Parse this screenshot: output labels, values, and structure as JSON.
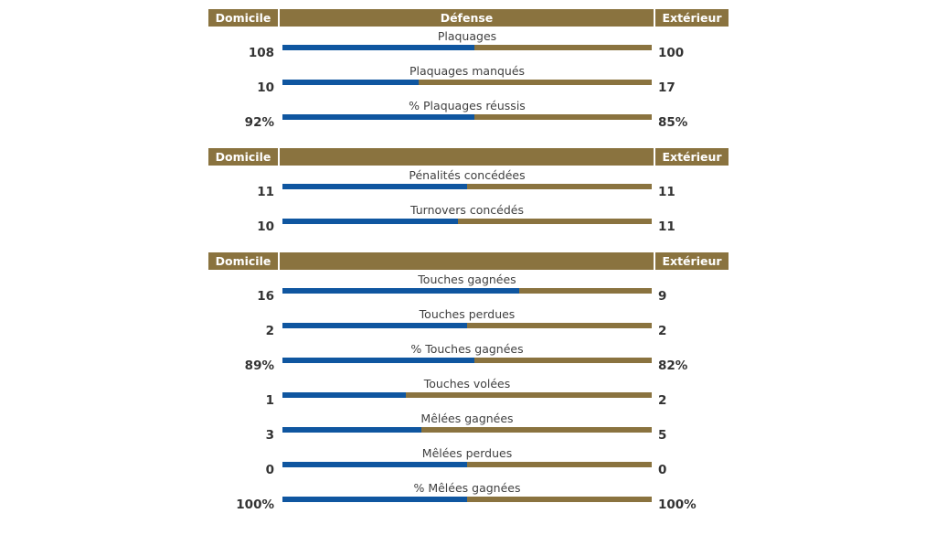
{
  "colors": {
    "home": "#0f56a0",
    "away": "#8a733f",
    "header_bg": "#8a733f",
    "header_text": "#ffffff"
  },
  "chart_data": {
    "type": "bar",
    "sections": [
      {
        "header": {
          "home": "Domicile",
          "middle": "Défense",
          "away": "Extérieur"
        },
        "stats": [
          {
            "label": "Plaquages",
            "home": "108",
            "away": "100",
            "home_share": 0.519
          },
          {
            "label": "Plaquages manqués",
            "home": "10",
            "away": "17",
            "home_share": 0.37
          },
          {
            "label": "% Plaquages réussis",
            "home": "92%",
            "away": "85%",
            "home_share": 0.52
          }
        ]
      },
      {
        "header": {
          "home": "Domicile",
          "middle": "",
          "away": "Extérieur"
        },
        "stats": [
          {
            "label": "Pénalités concédées",
            "home": "11",
            "away": "11",
            "home_share": 0.5
          },
          {
            "label": "Turnovers concédés",
            "home": "10",
            "away": "11",
            "home_share": 0.476
          }
        ]
      },
      {
        "header": {
          "home": "Domicile",
          "middle": "",
          "away": "Extérieur"
        },
        "stats": [
          {
            "label": "Touches gagnées",
            "home": "16",
            "away": "9",
            "home_share": 0.64
          },
          {
            "label": "Touches perdues",
            "home": "2",
            "away": "2",
            "home_share": 0.5
          },
          {
            "label": "% Touches gagnées",
            "home": "89%",
            "away": "82%",
            "home_share": 0.52
          },
          {
            "label": "Touches volées",
            "home": "1",
            "away": "2",
            "home_share": 0.333
          },
          {
            "label": "Mêlées gagnées",
            "home": "3",
            "away": "5",
            "home_share": 0.375
          },
          {
            "label": "Mêlées perdues",
            "home": "0",
            "away": "0",
            "home_share": 0.5
          },
          {
            "label": "% Mêlées gagnées",
            "home": "100%",
            "away": "100%",
            "home_share": 0.5
          }
        ]
      }
    ]
  }
}
